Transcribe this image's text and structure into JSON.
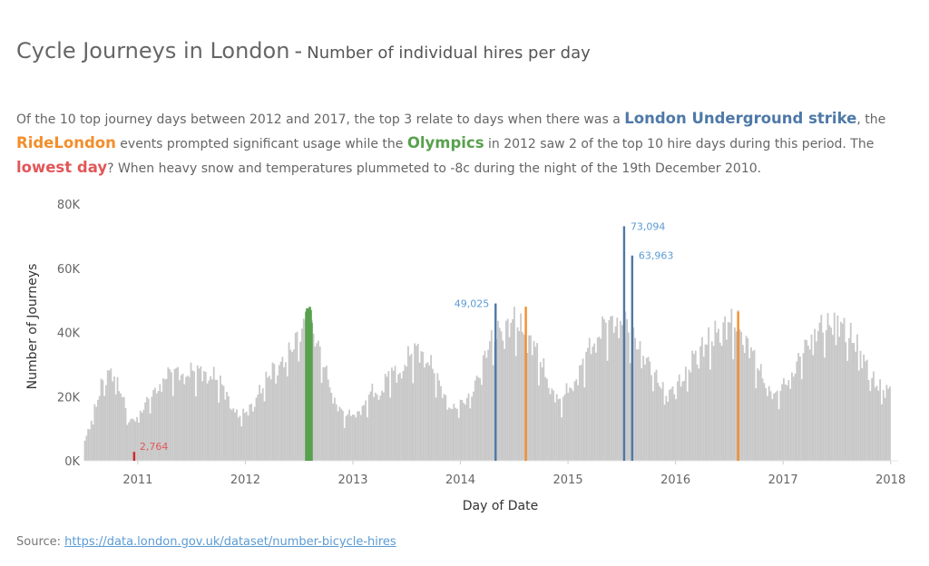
{
  "title": {
    "main": "Cycle Journeys in London",
    "separator": "-",
    "subtitle": "Number of individual hires per day"
  },
  "description": {
    "p1": "Of the 10 top journey days between 2012 and 2017,  the top 3 relate to days when there was a ",
    "h1": "London Underground strike",
    "p2": ",  the ",
    "h2": "RideLondon",
    "p3": " events prompted significant usage while the ",
    "h3": "Olympics",
    "p4": " in 2012 saw 2 of the top 10 hire days during this period.  The ",
    "h4": "lowest day",
    "p5": "?  When heavy snow and temperatures plummeted to -8c during the night of the 19th December 2010."
  },
  "source": {
    "label": "Source: ",
    "link": "https://data.london.gov.uk/dataset/number-bicycle-hires"
  },
  "colors": {
    "baseline": "#c8c8c8",
    "strike": "#4e79a7",
    "ridelondon": "#f28e2b",
    "olympics": "#59a14f",
    "lowest": "#d62728",
    "label_blue": "#5b9bd5",
    "label_red": "#e15759"
  },
  "chart_data": {
    "type": "bar",
    "xlabel": "Day of Date",
    "ylabel": "Number of Journeys",
    "ylim": [
      0,
      80000
    ],
    "yticks": [
      0,
      20000,
      40000,
      60000,
      80000
    ],
    "ytick_labels": [
      "0K",
      "20K",
      "40K",
      "60K",
      "80K"
    ],
    "xlim": [
      2010.52,
      2018.07
    ],
    "xticks": [
      2011,
      2012,
      2013,
      2014,
      2015,
      2016,
      2017,
      2018
    ],
    "xtick_labels": [
      "2011",
      "2012",
      "2013",
      "2014",
      "2015",
      "2016",
      "2017",
      "2018"
    ],
    "grid": false,
    "series_baseline_monthly": {
      "start": "2010-07",
      "values": [
        6000,
        15000,
        25000,
        28000,
        22000,
        12000,
        14000,
        19000,
        22000,
        27000,
        28000,
        27000,
        28000,
        28000,
        27000,
        25000,
        20000,
        14000,
        15000,
        19000,
        24000,
        29000,
        30000,
        35000,
        40000,
        44000,
        36000,
        27000,
        18000,
        14000,
        15000,
        16000,
        22000,
        21000,
        28000,
        27000,
        32000,
        35000,
        33000,
        28000,
        21000,
        16000,
        18000,
        20000,
        27000,
        36000,
        40000,
        42000,
        44000,
        40000,
        37000,
        30000,
        23000,
        18000,
        23000,
        26000,
        34000,
        38000,
        43000,
        43000,
        45000,
        40000,
        35000,
        30000,
        25000,
        20000,
        24000,
        26000,
        33000,
        36000,
        38000,
        42000,
        43000,
        42000,
        37000,
        30000,
        24000,
        20000,
        24000,
        27000,
        34000,
        38000,
        42000,
        42000,
        44000,
        40000,
        37000,
        31000,
        25000,
        22000
      ]
    },
    "highlights": [
      {
        "category": "lowest",
        "date": "2010-12-19",
        "value": 2764,
        "label": "2,764"
      },
      {
        "category": "olympics",
        "date": "2012-07-25",
        "value": 46500
      },
      {
        "category": "olympics",
        "date": "2012-07-28",
        "value": 47500
      },
      {
        "category": "olympics",
        "date": "2012-07-31",
        "value": 44000
      },
      {
        "category": "olympics",
        "date": "2012-08-03",
        "value": 47500
      },
      {
        "category": "olympics",
        "date": "2012-08-07",
        "value": 48000
      },
      {
        "category": "olympics",
        "date": "2012-08-10",
        "value": 47000
      },
      {
        "category": "olympics",
        "date": "2012-08-13",
        "value": 43000
      },
      {
        "category": "strike",
        "date": "2014-04-29",
        "value": 49025,
        "label": "49,025"
      },
      {
        "category": "ridelondon",
        "date": "2014-08-10",
        "value": 48000
      },
      {
        "category": "strike",
        "date": "2015-07-09",
        "value": 73094,
        "label": "73,094"
      },
      {
        "category": "strike",
        "date": "2015-08-06",
        "value": 63963,
        "label": "63,963"
      },
      {
        "category": "ridelondon",
        "date": "2016-07-31",
        "value": 46500
      }
    ]
  }
}
